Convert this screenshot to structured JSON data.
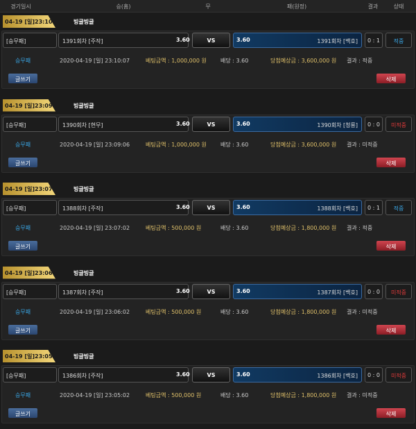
{
  "header": {
    "columns": [
      "경기일시",
      "승(홈)",
      "무",
      "패(원정)",
      "결과",
      "상태"
    ]
  },
  "entries": [
    {
      "date": "04-19 [일]23:10",
      "game": "빙글빙글",
      "type": "[승무패]",
      "home": "1391회차 [주작]",
      "home_odds": "3.60",
      "vs": "VS",
      "away_odds": "3.60",
      "away": "1391회차 [백호]",
      "score": "0 : 1",
      "status": "적중",
      "status_color": "#3aa8e8",
      "bet_type": "승무패",
      "bet_time": "2020-04-19 [일] 23:10:07",
      "amount": "베팅금액 : 1,000,000 원",
      "odds": "배당 : 3.60",
      "expected": "당첨예상금 : 3,600,000 원",
      "result": "결과 : 적중",
      "write": "글쓰기",
      "delete": "삭제"
    },
    {
      "date": "04-19 [일]23:09",
      "game": "빙글빙글",
      "type": "[승무패]",
      "home": "1390회차 [현무]",
      "home_odds": "3.60",
      "vs": "VS",
      "away_odds": "3.60",
      "away": "1390회차 [청룡]",
      "score": "0 : 0",
      "status": "미적중",
      "status_color": "#e23a3a",
      "bet_type": "승무패",
      "bet_time": "2020-04-19 [일] 23:09:06",
      "amount": "베팅금액 : 1,000,000 원",
      "odds": "배당 : 3.60",
      "expected": "당첨예상금 : 3,600,000 원",
      "result": "결과 : 미적중",
      "write": "글쓰기",
      "delete": "삭제"
    },
    {
      "date": "04-19 [일]23:07",
      "game": "빙글빙글",
      "type": "[승무패]",
      "home": "1388회차 [주작]",
      "home_odds": "3.60",
      "vs": "VS",
      "away_odds": "3.60",
      "away": "1388회차 [백호]",
      "score": "0 : 1",
      "status": "적중",
      "status_color": "#3aa8e8",
      "bet_type": "승무패",
      "bet_time": "2020-04-19 [일] 23:07:02",
      "amount": "베팅금액 : 500,000 원",
      "odds": "배당 : 3.60",
      "expected": "당첨예상금 : 1,800,000 원",
      "result": "결과 : 적중",
      "write": "글쓰기",
      "delete": "삭제"
    },
    {
      "date": "04-19 [일]23:06",
      "game": "빙글빙글",
      "type": "[승무패]",
      "home": "1387회차 [주작]",
      "home_odds": "3.60",
      "vs": "VS",
      "away_odds": "3.60",
      "away": "1387회차 [백호]",
      "score": "0 : 0",
      "status": "미적중",
      "status_color": "#e23a3a",
      "bet_type": "승무패",
      "bet_time": "2020-04-19 [일] 23:06:02",
      "amount": "베팅금액 : 500,000 원",
      "odds": "배당 : 3.60",
      "expected": "당첨예상금 : 1,800,000 원",
      "result": "결과 : 미적중",
      "write": "글쓰기",
      "delete": "삭제"
    },
    {
      "date": "04-19 [일]23:05",
      "game": "빙글빙글",
      "type": "[승무패]",
      "home": "1386회차 [주작]",
      "home_odds": "3.60",
      "vs": "VS",
      "away_odds": "3.60",
      "away": "1386회차 [백호]",
      "score": "0 : 0",
      "status": "미적중",
      "status_color": "#e23a3a",
      "bet_type": "승무패",
      "bet_time": "2020-04-19 [일] 23:05:02",
      "amount": "베팅금액 : 500,000 원",
      "odds": "배당 : 3.60",
      "expected": "당첨예상금 : 1,800,000 원",
      "result": "결과 : 미적중",
      "write": "글쓰기",
      "delete": "삭제"
    }
  ]
}
